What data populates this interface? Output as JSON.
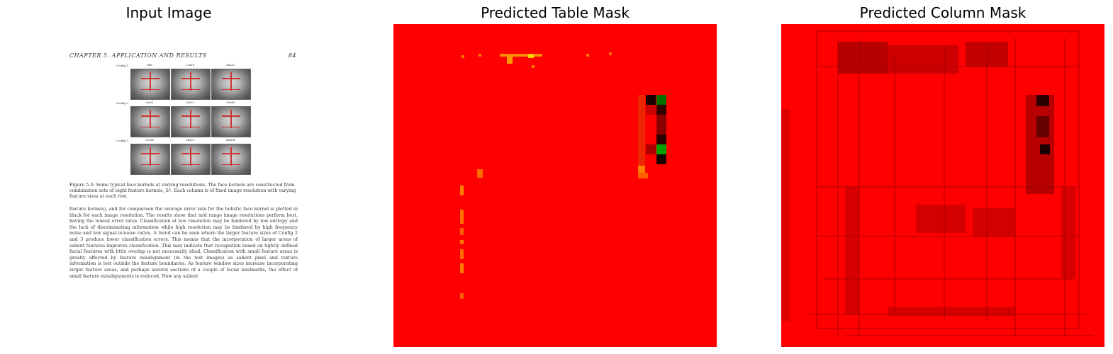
{
  "titles": {
    "input": "Input Image",
    "table_mask": "Predicted Table Mask",
    "column_mask": "Predicted Column Mask"
  },
  "document": {
    "header_left": "CHAPTER 5.  APPLICATION AND RESULTS",
    "header_right": "84",
    "configs": [
      "Config 1",
      "Config 2",
      "Config 3"
    ],
    "face_sizes": [
      [
        "8x8",
        "12x16",
        "24x32"
      ],
      [
        "8x14",
        "18x25",
        "30x40"
      ],
      [
        "12x16",
        "24x32",
        "48x64"
      ]
    ],
    "caption": "Figure 5.3: Some typical face kernels at varying resolutions. The face kernels are constructed from combination sets of eight feature kernels, Sᵢᵏ. Each column is of fixed image resolution with varying feature sizes at each row.",
    "body": "feature kernels), and for comparison the average error rate for the holistic face kernel is plotted in black for each image resolution. The results show that mid range image resolutions perform best, having the lowest error rates. Classification at low resolution may be hindered by low entropy and the lack of discriminating information while high resolution may be hindered by high frequency noise and low signal-to-noise ratios. A trend can be seen where the larger feature sizes of Config 2 and 3 produce lower classification errors. This means that the incorporation of larger areas of salient features improves classification. This may indicate that recognition based on tightly defined facial features with little overlap is not necessarily ideal. Classification with small feature areas is greatly affected by feature misalignment (in the test images) as salient pixel and texture information is lost outside the feature boundaries. As feature window sizes increase incorporating larger feature areas, and perhaps several sections of a couple of facial landmarks, the effect of small feature misalignments is reduced. Now any salient"
  },
  "colors": {
    "mask_background": "#ff0000",
    "positive": "#008000",
    "dark": "#1a0000",
    "hot": "#ff8c00"
  }
}
